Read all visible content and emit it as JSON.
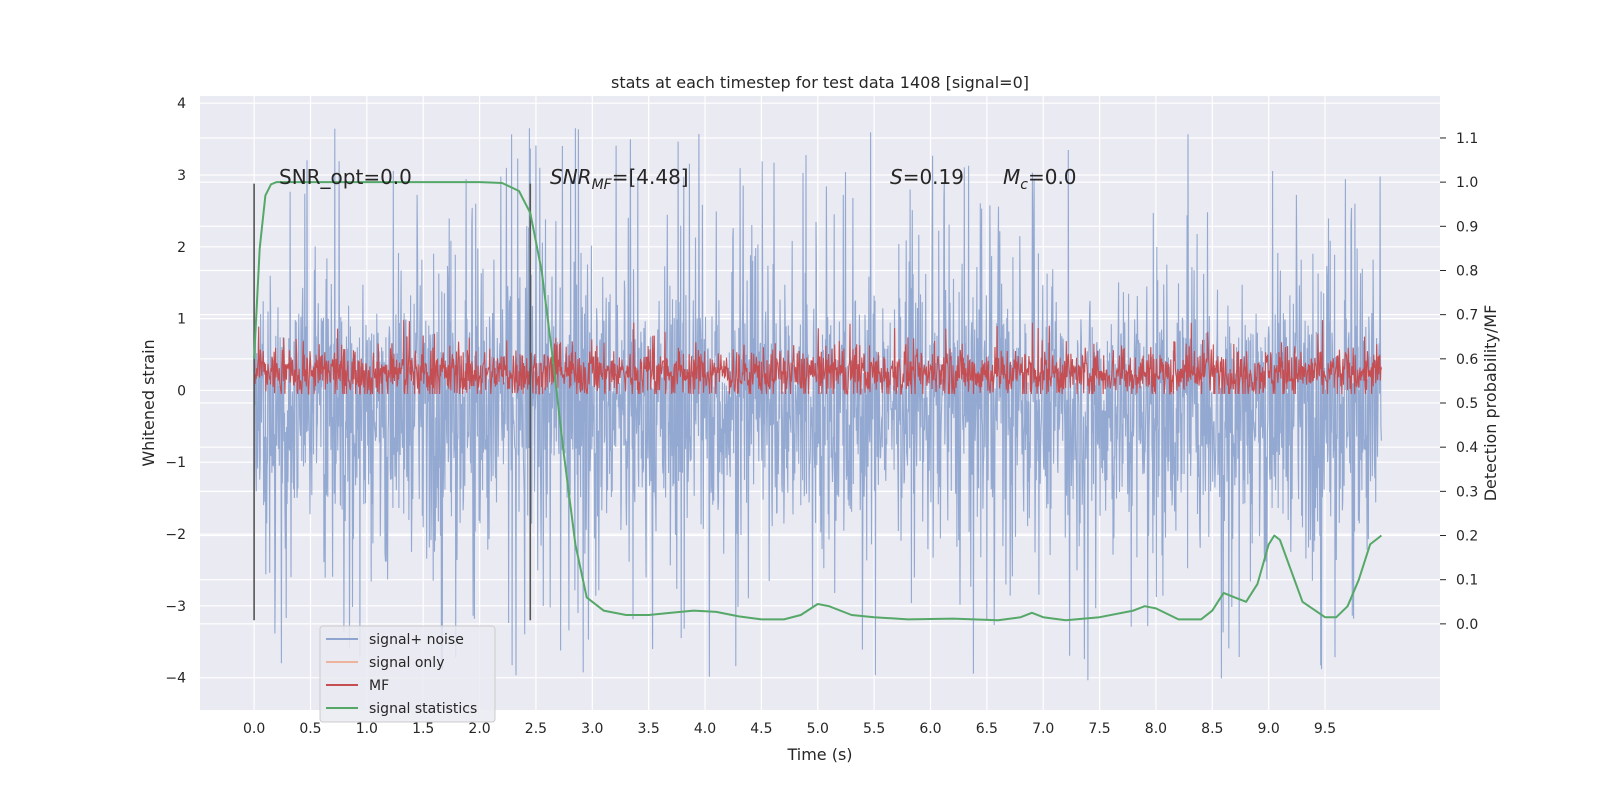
{
  "chart_data": {
    "type": "line",
    "title": "stats at each timestep for test data 1408 [signal=0]",
    "xlabel": "Time (s)",
    "ylabel": "Whitened strain",
    "y2label": "Detection probability/MF",
    "xlim": [
      -0.48,
      10.52
    ],
    "ylim": [
      -4.45,
      4.1
    ],
    "y2lim": [
      -0.195,
      1.195
    ],
    "xticks": [
      "0.0",
      "0.5",
      "1.0",
      "1.5",
      "2.0",
      "2.5",
      "3.0",
      "3.5",
      "4.0",
      "4.5",
      "5.0",
      "5.5",
      "6.0",
      "6.5",
      "7.0",
      "7.5",
      "8.0",
      "8.5",
      "9.0",
      "9.5"
    ],
    "yticks": [
      "4",
      "3",
      "2",
      "1",
      "0",
      "−1",
      "−2",
      "−3",
      "−4"
    ],
    "y2ticks": [
      "1.1",
      "1.0",
      "0.9",
      "0.8",
      "0.7",
      "0.6",
      "0.5",
      "0.4",
      "0.3",
      "0.2",
      "0.1",
      "0.0"
    ],
    "grid": true,
    "legend": {
      "placement": "lower-left",
      "entries": [
        {
          "name": "signal+ noise",
          "color": "#8fa5cf"
        },
        {
          "name": "signal only",
          "color": "#eeb49b"
        },
        {
          "name": "MF",
          "color": "#c44e52"
        },
        {
          "name": "signal statistics",
          "color": "#55a868"
        }
      ]
    },
    "annotations": {
      "snr_opt": "SNR_opt=0.0",
      "snr_mf_label": "SNR",
      "snr_mf_sub": "MF",
      "snr_mf_value": "=[4.48]",
      "s_label": "S",
      "s_value": "=0.19",
      "mc_label": "M",
      "mc_sub": "c",
      "mc_value": "=0.0"
    },
    "vlines_x": [
      0.0,
      2.45
    ],
    "series": [
      {
        "name": "signal+ noise",
        "axis": "left",
        "color": "#8fa5cf",
        "x_range": [
          0.0,
          10.0
        ],
        "center": -0.2,
        "envelope_abs": 1.55,
        "max": 3.65,
        "min": -4.05
      },
      {
        "name": "MF",
        "axis": "left",
        "color": "#c44e52",
        "x_range": [
          0.0,
          10.0
        ],
        "center": 0.25,
        "envelope_abs": 0.3,
        "max": 1.0,
        "min": -0.05
      },
      {
        "name": "signal statistics",
        "axis": "right",
        "color": "#55a868",
        "x": [
          0.0,
          0.05,
          0.1,
          0.15,
          0.2,
          0.5,
          1.0,
          1.5,
          2.0,
          2.2,
          2.35,
          2.45,
          2.55,
          2.65,
          2.75,
          2.85,
          2.95,
          3.1,
          3.3,
          3.5,
          3.7,
          3.9,
          4.1,
          4.3,
          4.5,
          4.7,
          4.85,
          5.0,
          5.1,
          5.3,
          5.5,
          5.8,
          6.2,
          6.6,
          6.8,
          6.9,
          7.0,
          7.2,
          7.5,
          7.8,
          7.9,
          8.0,
          8.2,
          8.4,
          8.5,
          8.6,
          8.7,
          8.8,
          8.9,
          9.0,
          9.05,
          9.1,
          9.2,
          9.3,
          9.5,
          9.6,
          9.7,
          9.8,
          9.9,
          10.0
        ],
        "y": [
          0.6,
          0.85,
          0.97,
          0.995,
          1.0,
          1.0,
          1.0,
          1.0,
          1.0,
          0.998,
          0.98,
          0.93,
          0.8,
          0.6,
          0.38,
          0.18,
          0.06,
          0.03,
          0.02,
          0.02,
          0.025,
          0.03,
          0.027,
          0.017,
          0.01,
          0.01,
          0.02,
          0.045,
          0.04,
          0.02,
          0.015,
          0.01,
          0.012,
          0.008,
          0.015,
          0.025,
          0.015,
          0.008,
          0.015,
          0.03,
          0.04,
          0.035,
          0.01,
          0.01,
          0.03,
          0.07,
          0.06,
          0.05,
          0.09,
          0.18,
          0.2,
          0.19,
          0.12,
          0.05,
          0.015,
          0.015,
          0.04,
          0.1,
          0.18,
          0.2
        ]
      }
    ]
  }
}
